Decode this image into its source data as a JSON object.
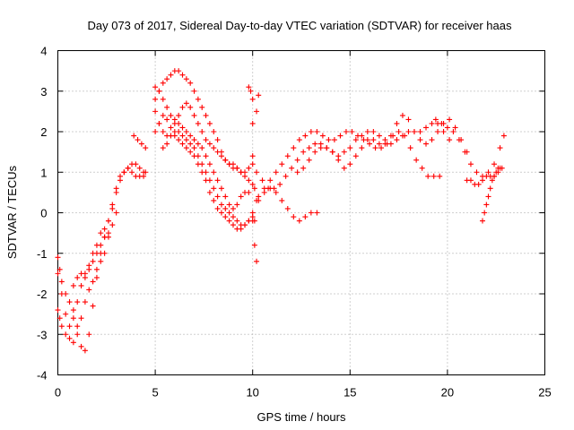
{
  "chart_data": {
    "type": "scatter",
    "title": "Day 073 of 2017, Sidereal Day-to-day VTEC variation (SDTVAR) for receiver haas",
    "xlabel": "GPS time / hours",
    "ylabel": "SDTVAR / TECUs",
    "xlim": [
      0,
      25
    ],
    "ylim": [
      -4,
      4
    ],
    "x_ticks": [
      0,
      5,
      10,
      15,
      20,
      25
    ],
    "y_ticks": [
      -4,
      -3,
      -2,
      -1,
      0,
      1,
      2,
      3,
      4
    ],
    "x_tick_labels": [
      "0",
      "5",
      "10",
      "15",
      "20",
      "25"
    ],
    "y_tick_labels": [
      "-4",
      "-3",
      "-2",
      "-1",
      "0",
      "1",
      "2",
      "3",
      "4"
    ],
    "grid": true,
    "marker": "+",
    "color": "#ff0000",
    "series": [
      {
        "x": [
          0.0,
          0.1,
          0.2,
          0.4,
          0.6,
          0.8,
          1.0,
          1.2,
          1.4,
          1.6,
          1.8,
          2.0,
          2.2,
          2.4,
          2.6,
          2.8,
          3.0,
          3.2,
          3.4,
          3.6,
          3.8,
          4.0,
          4.2,
          4.4,
          4.5
        ],
        "y": [
          -2.4,
          -2.6,
          -2.8,
          -3.0,
          -3.1,
          -3.2,
          -3.0,
          -2.6,
          -2.2,
          -1.9,
          -1.7,
          -1.4,
          -1.0,
          -0.6,
          -0.2,
          0.1,
          0.5,
          0.8,
          1.0,
          1.1,
          1.2,
          1.2,
          1.1,
          1.0,
          1.0
        ]
      },
      {
        "x": [
          0.0,
          0.2,
          0.4,
          0.6,
          0.8,
          1.0,
          1.2,
          1.4,
          1.6,
          1.8,
          2.0,
          2.2,
          2.4,
          2.6,
          2.8,
          3.0,
          3.2,
          3.4,
          3.6,
          3.8,
          4.0,
          4.2,
          4.4
        ],
        "y": [
          -1.5,
          -2.0,
          -2.5,
          -2.8,
          -2.6,
          -2.2,
          -1.8,
          -1.6,
          -1.3,
          -1.0,
          -0.8,
          -0.5,
          -0.4,
          -0.2,
          0.2,
          0.6,
          0.9,
          1.0,
          1.1,
          1.0,
          0.9,
          0.9,
          0.9
        ]
      },
      {
        "x": [
          0.0,
          0.1,
          0.2,
          0.4,
          0.6,
          0.8,
          1.0,
          1.2,
          1.4,
          1.6,
          1.8,
          2.0,
          2.2,
          2.4,
          2.6,
          2.8,
          3.0
        ],
        "y": [
          -1.1,
          -1.4,
          -1.7,
          -2.0,
          -2.2,
          -2.4,
          -2.8,
          -3.3,
          -3.4,
          -3.0,
          -2.3,
          -1.6,
          -1.2,
          -1.0,
          -0.6,
          -0.3,
          0.0
        ]
      },
      {
        "x": [
          0.8,
          1.0,
          1.2,
          1.4,
          1.6,
          1.8,
          2.0,
          2.2,
          2.4,
          2.6
        ],
        "y": [
          -1.8,
          -1.6,
          -1.5,
          -1.5,
          -1.4,
          -1.2,
          -1.0,
          -0.8,
          -0.6,
          -0.5
        ]
      },
      {
        "x": [
          3.9,
          4.1,
          4.3,
          4.5
        ],
        "y": [
          1.9,
          1.8,
          1.7,
          1.6
        ]
      },
      {
        "x": [
          5.0,
          5.2,
          5.4,
          5.6,
          5.8,
          6.0,
          6.2,
          6.4,
          6.6,
          6.8,
          7.0,
          7.2,
          7.4,
          7.6,
          7.8,
          8.0,
          8.2,
          8.4,
          8.6,
          8.8,
          9.0,
          9.2,
          9.4,
          9.6,
          9.8,
          10.0
        ],
        "y": [
          2.8,
          3.0,
          3.2,
          3.3,
          3.4,
          3.5,
          3.5,
          3.4,
          3.3,
          3.2,
          3.0,
          2.8,
          2.6,
          2.4,
          2.2,
          2.0,
          1.8,
          1.5,
          1.3,
          1.2,
          1.1,
          1.1,
          1.0,
          1.0,
          1.1,
          1.2
        ]
      },
      {
        "x": [
          5.0,
          5.2,
          5.4,
          5.6,
          5.8,
          6.0,
          6.2,
          6.4,
          6.6,
          6.8,
          7.0,
          7.2,
          7.4,
          7.6,
          7.8,
          8.0,
          8.2,
          8.4,
          8.6,
          8.8,
          9.0,
          9.2,
          9.4,
          9.6,
          9.8
        ],
        "y": [
          3.1,
          3.0,
          2.8,
          2.6,
          2.4,
          2.3,
          2.2,
          2.1,
          2.0,
          1.9,
          1.8,
          1.7,
          1.6,
          1.4,
          1.2,
          1.0,
          0.8,
          0.6,
          0.4,
          0.2,
          0.1,
          0.2,
          0.4,
          0.5,
          0.5
        ]
      },
      {
        "x": [
          5.0,
          5.2,
          5.4,
          5.6,
          5.8,
          6.0,
          6.2,
          6.4,
          6.6,
          6.8,
          7.0,
          7.2,
          7.4,
          7.6,
          7.8,
          8.0,
          8.2,
          8.4,
          8.6,
          8.8,
          9.0,
          9.2,
          9.4,
          9.6,
          9.8,
          10.0
        ],
        "y": [
          2.5,
          2.2,
          2.0,
          1.9,
          1.9,
          2.0,
          2.0,
          1.9,
          1.8,
          1.7,
          1.6,
          1.4,
          1.2,
          1.0,
          0.8,
          0.6,
          0.4,
          0.2,
          0.1,
          0.0,
          -0.1,
          -0.2,
          -0.3,
          -0.3,
          -0.2,
          -0.1
        ]
      },
      {
        "x": [
          5.0,
          5.2,
          5.4,
          5.6,
          5.8,
          6.0,
          6.2,
          6.4,
          6.6,
          6.8,
          7.0,
          7.2,
          7.4,
          7.6,
          7.8,
          8.0,
          8.2,
          8.4,
          8.6,
          8.8,
          9.0,
          9.2,
          9.4,
          9.6,
          9.8,
          10.0
        ],
        "y": [
          2.0,
          2.2,
          2.4,
          2.3,
          2.1,
          1.9,
          1.8,
          1.7,
          1.6,
          1.5,
          1.4,
          1.2,
          1.0,
          0.8,
          0.5,
          0.3,
          0.1,
          0.0,
          -0.1,
          -0.2,
          -0.3,
          -0.4,
          -0.4,
          -0.3,
          -0.2,
          -0.2
        ]
      },
      {
        "x": [
          5.4,
          5.6,
          5.8,
          6.0,
          6.2,
          6.4,
          6.6,
          6.8,
          7.0,
          7.2,
          7.4,
          7.6,
          7.8,
          8.0,
          8.2,
          8.4,
          8.6,
          8.8,
          9.0,
          9.2,
          9.4,
          9.6,
          9.8,
          10.0
        ],
        "y": [
          1.6,
          1.7,
          1.9,
          2.2,
          2.4,
          2.6,
          2.7,
          2.6,
          2.4,
          2.2,
          2.0,
          1.8,
          1.7,
          1.6,
          1.5,
          1.4,
          1.3,
          1.2,
          1.2,
          1.1,
          1.0,
          0.9,
          0.8,
          0.7
        ]
      },
      {
        "x": [
          9.8,
          9.9,
          10.0,
          10.0,
          10.0,
          10.1,
          10.1,
          10.1,
          10.2,
          10.2,
          10.2,
          10.3
        ],
        "y": [
          3.1,
          3.0,
          2.8,
          2.2,
          1.4,
          0.6,
          -0.2,
          -0.8,
          -1.2,
          0.3,
          2.5,
          2.9
        ]
      },
      {
        "x": [
          10.0,
          10.3,
          10.6,
          10.9,
          11.2,
          11.5,
          11.8,
          12.1,
          12.4,
          12.7,
          13.0,
          13.3,
          13.6,
          13.9,
          14.2,
          14.5,
          14.8,
          15.1,
          15.4,
          15.7,
          16.0,
          16.3,
          16.6,
          16.9,
          17.2,
          17.5,
          17.8,
          18.1,
          18.4,
          18.7,
          19.0,
          19.3,
          19.6
        ],
        "y": [
          0.0,
          0.3,
          0.6,
          0.8,
          1.0,
          1.2,
          1.4,
          1.6,
          1.8,
          1.9,
          2.0,
          2.0,
          1.9,
          1.8,
          1.8,
          1.9,
          2.0,
          2.0,
          1.9,
          1.8,
          1.7,
          1.6,
          1.6,
          1.7,
          1.9,
          2.0,
          1.9,
          1.6,
          1.3,
          1.1,
          0.9,
          0.9,
          0.9
        ]
      },
      {
        "x": [
          10.2,
          10.5,
          10.8,
          11.1,
          11.4,
          11.7,
          12.0,
          12.3,
          12.6,
          12.9,
          13.2,
          13.5,
          13.8,
          14.1,
          14.4,
          14.7,
          15.0,
          15.3,
          15.6,
          15.9,
          16.2,
          16.5,
          16.8,
          17.1,
          17.4,
          17.7,
          18.0,
          18.3,
          18.6,
          18.9,
          19.2,
          19.5,
          19.8,
          20.1
        ],
        "y": [
          1.0,
          0.8,
          0.6,
          0.6,
          0.7,
          0.9,
          1.1,
          1.3,
          1.5,
          1.6,
          1.7,
          1.7,
          1.6,
          1.5,
          1.4,
          1.5,
          1.6,
          1.8,
          1.9,
          2.0,
          2.0,
          1.9,
          1.8,
          1.7,
          1.8,
          1.9,
          2.0,
          2.0,
          2.0,
          2.1,
          2.2,
          2.2,
          2.0,
          1.8
        ]
      },
      {
        "x": [
          10.3,
          10.6,
          10.9,
          11.2,
          11.5,
          11.8,
          12.1,
          12.4,
          12.7,
          13.0,
          13.3
        ],
        "y": [
          0.4,
          0.5,
          0.6,
          0.5,
          0.3,
          0.1,
          -0.1,
          -0.2,
          -0.1,
          0.0,
          0.0
        ]
      },
      {
        "x": [
          12.3,
          12.6,
          12.9,
          13.2,
          13.5,
          13.8,
          14.1,
          14.4,
          14.7,
          15.0,
          15.3,
          15.6,
          15.9,
          16.2,
          16.5,
          16.8,
          17.1,
          17.4,
          17.7,
          18.0,
          18.3,
          18.6,
          18.9,
          19.2,
          19.5,
          19.8,
          20.1,
          20.4,
          20.7,
          21.0
        ],
        "y": [
          1.0,
          1.1,
          1.3,
          1.5,
          1.6,
          1.6,
          1.5,
          1.3,
          1.1,
          1.2,
          1.4,
          1.6,
          1.8,
          1.8,
          1.7,
          1.7,
          1.9,
          2.2,
          2.4,
          2.3,
          2.0,
          1.8,
          1.7,
          1.8,
          2.0,
          2.2,
          2.3,
          2.1,
          1.8,
          1.5
        ]
      },
      {
        "x": [
          19.4,
          19.7,
          20.0,
          20.3,
          20.6,
          20.9,
          21.2,
          21.5,
          21.8,
          22.1,
          22.4,
          22.7,
          22.9
        ],
        "y": [
          2.3,
          2.2,
          2.1,
          2.0,
          1.8,
          1.5,
          1.2,
          1.0,
          0.9,
          1.0,
          1.2,
          1.6,
          1.9
        ]
      },
      {
        "x": [
          21.0,
          21.2,
          21.4,
          21.6,
          21.8,
          22.0,
          22.2,
          22.4,
          22.6,
          22.8
        ],
        "y": [
          0.8,
          0.8,
          0.7,
          0.7,
          0.8,
          0.9,
          0.9,
          0.9,
          1.0,
          1.1
        ]
      },
      {
        "x": [
          21.8,
          21.9,
          22.0,
          22.1,
          22.2,
          22.3,
          22.4,
          22.5,
          22.6,
          22.7
        ],
        "y": [
          -0.2,
          0.0,
          0.2,
          0.4,
          0.6,
          0.8,
          0.9,
          1.0,
          1.1,
          1.1
        ]
      }
    ]
  }
}
